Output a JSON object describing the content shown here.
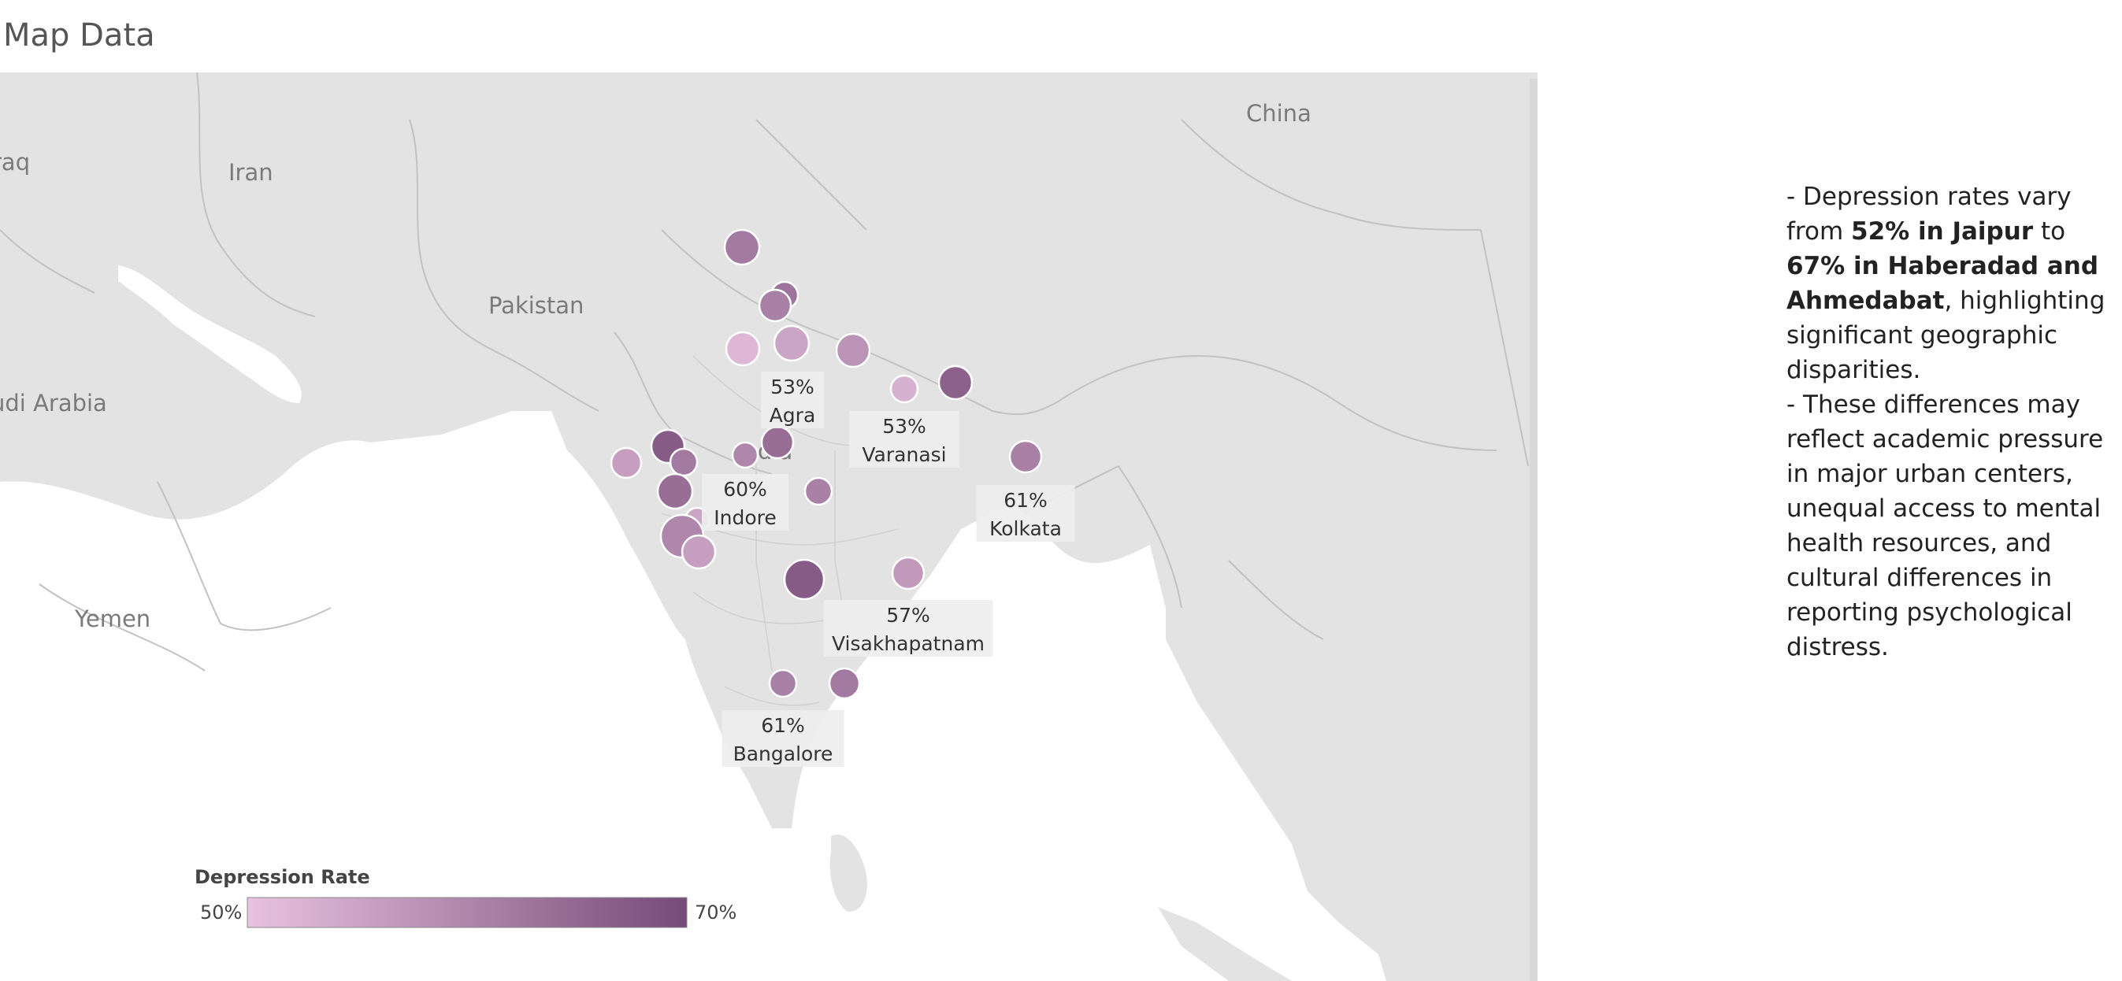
{
  "title": "Map Data",
  "map": {
    "country_labels": [
      "China",
      "Iran",
      "raq",
      "Pakistan",
      "udi Arabia",
      "Yemen",
      "dia"
    ],
    "cities": [
      {
        "name": "Agra",
        "rate": 53,
        "label": "53%"
      },
      {
        "name": "Varanasi",
        "rate": 53,
        "label": "53%"
      },
      {
        "name": "Indore",
        "rate": 60,
        "label": "60%"
      },
      {
        "name": "Kolkata",
        "rate": 61,
        "label": "61%"
      },
      {
        "name": "Visakhapatnam",
        "rate": 57,
        "label": "57%"
      },
      {
        "name": "Bangalore",
        "rate": 61,
        "label": "61%"
      },
      {
        "name": "",
        "rate": 62,
        "label": ""
      },
      {
        "name": "",
        "rate": 63,
        "label": ""
      },
      {
        "name": "",
        "rate": 61,
        "label": ""
      },
      {
        "name": "",
        "rate": 52,
        "label": ""
      },
      {
        "name": "",
        "rate": 55,
        "label": ""
      },
      {
        "name": "",
        "rate": 58,
        "label": ""
      },
      {
        "name": "",
        "rate": 66,
        "label": ""
      },
      {
        "name": "",
        "rate": 64,
        "label": ""
      },
      {
        "name": "",
        "rate": 67,
        "label": ""
      },
      {
        "name": "",
        "rate": 56,
        "label": ""
      },
      {
        "name": "",
        "rate": 62,
        "label": ""
      },
      {
        "name": "",
        "rate": 64,
        "label": ""
      },
      {
        "name": "",
        "rate": 55,
        "label": ""
      },
      {
        "name": "",
        "rate": 60,
        "label": ""
      },
      {
        "name": "",
        "rate": 56,
        "label": ""
      },
      {
        "name": "",
        "rate": 61,
        "label": ""
      },
      {
        "name": "",
        "rate": 67,
        "label": ""
      },
      {
        "name": "",
        "rate": 62,
        "label": ""
      }
    ],
    "legend": {
      "title": "Depression Rate",
      "min_label": "50%",
      "max_label": "70%",
      "min": 50,
      "max": 70,
      "color_low": "#e8c3df",
      "color_high": "#754a78"
    },
    "colors": {
      "land": "#e3e3e3",
      "water": "#ffffff",
      "border": "#c2c2c2"
    }
  },
  "sidebar": {
    "p1_a": "- Depression rates vary from ",
    "p1_b": "52% in Jaipur",
    "p1_c": " to ",
    "p1_d": "67% in Haberadad and Ahmedabat",
    "p1_e": ", highlighting significant geographic disparities.",
    "p2": "- These differences may reflect academic pressure in major urban centers, unequal access to mental health resources, and cultural differences in reporting psychological distress."
  }
}
